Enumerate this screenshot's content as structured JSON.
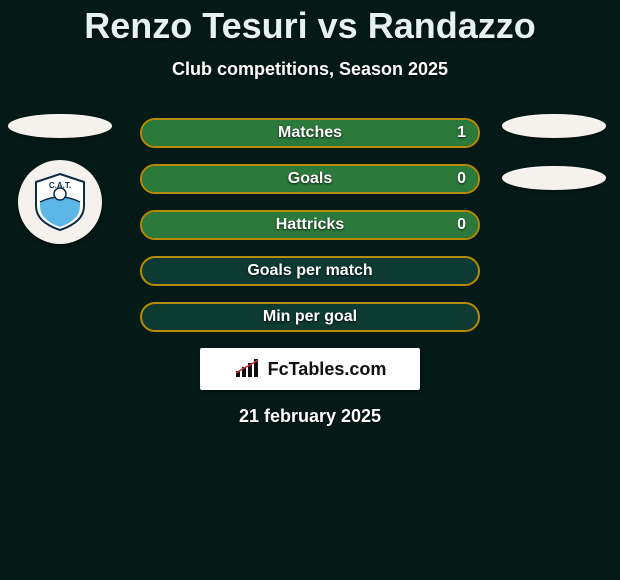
{
  "title": "Renzo Tesuri vs Randazzo",
  "subtitle": "Club competitions, Season 2025",
  "date": "21 february 2025",
  "logo_text": "FcTables.com",
  "colors": {
    "background": "#051a16",
    "bar_border": "#b88a00",
    "bar_bg": "#0d3a33",
    "bar_fill": "#2c7a3b",
    "ellipse": "#f5f2ed",
    "text": "#ffffff"
  },
  "badge": {
    "top_color": "#5bb8e6",
    "bottom_color": "#ffffff",
    "text": "C.A.T."
  },
  "stats": [
    {
      "label": "Matches",
      "value": "1",
      "fill_pct": 100
    },
    {
      "label": "Goals",
      "value": "0",
      "fill_pct": 100
    },
    {
      "label": "Hattricks",
      "value": "0",
      "fill_pct": 100
    },
    {
      "label": "Goals per match",
      "value": "",
      "fill_pct": 0
    },
    {
      "label": "Min per goal",
      "value": "",
      "fill_pct": 0
    }
  ]
}
